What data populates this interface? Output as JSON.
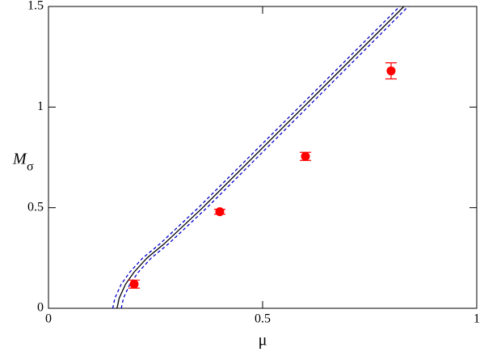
{
  "chart_data": {
    "type": "scatter",
    "xlabel": "μ",
    "ylabel": {
      "main": "M",
      "sub": "σ"
    },
    "xlim": [
      0,
      1
    ],
    "ylim": [
      0,
      1.5
    ],
    "xticks": [
      0,
      0.5,
      1
    ],
    "yticks": [
      0,
      0.5,
      1,
      1.5
    ],
    "series": [
      {
        "type": "scatter",
        "color": "#ff0000",
        "x": [
          0.2,
          0.4,
          0.6,
          0.8
        ],
        "values": [
          0.12,
          0.48,
          0.755,
          1.18
        ],
        "errors": [
          0.02,
          0.012,
          0.02,
          0.04
        ]
      },
      {
        "type": "line",
        "color": "#000000",
        "dash": false,
        "x": [
          0.16,
          0.165,
          0.18,
          0.2,
          0.23,
          0.27,
          0.36,
          0.6,
          0.83
        ],
        "values": [
          0,
          0.05,
          0.12,
          0.18,
          0.25,
          0.32,
          0.5,
          1.01,
          1.5
        ]
      },
      {
        "type": "line",
        "color": "#0000cc",
        "dash": true,
        "x": [
          0.15,
          0.155,
          0.17,
          0.19,
          0.22,
          0.26,
          0.35,
          0.59,
          0.82
        ],
        "values": [
          0,
          0.05,
          0.12,
          0.18,
          0.25,
          0.32,
          0.5,
          1.01,
          1.5
        ]
      },
      {
        "type": "line",
        "color": "#0000cc",
        "dash": true,
        "x": [
          0.17,
          0.175,
          0.19,
          0.21,
          0.24,
          0.28,
          0.37,
          0.61,
          0.84
        ],
        "values": [
          0,
          0.05,
          0.12,
          0.18,
          0.25,
          0.32,
          0.5,
          1.01,
          1.5
        ]
      }
    ]
  }
}
